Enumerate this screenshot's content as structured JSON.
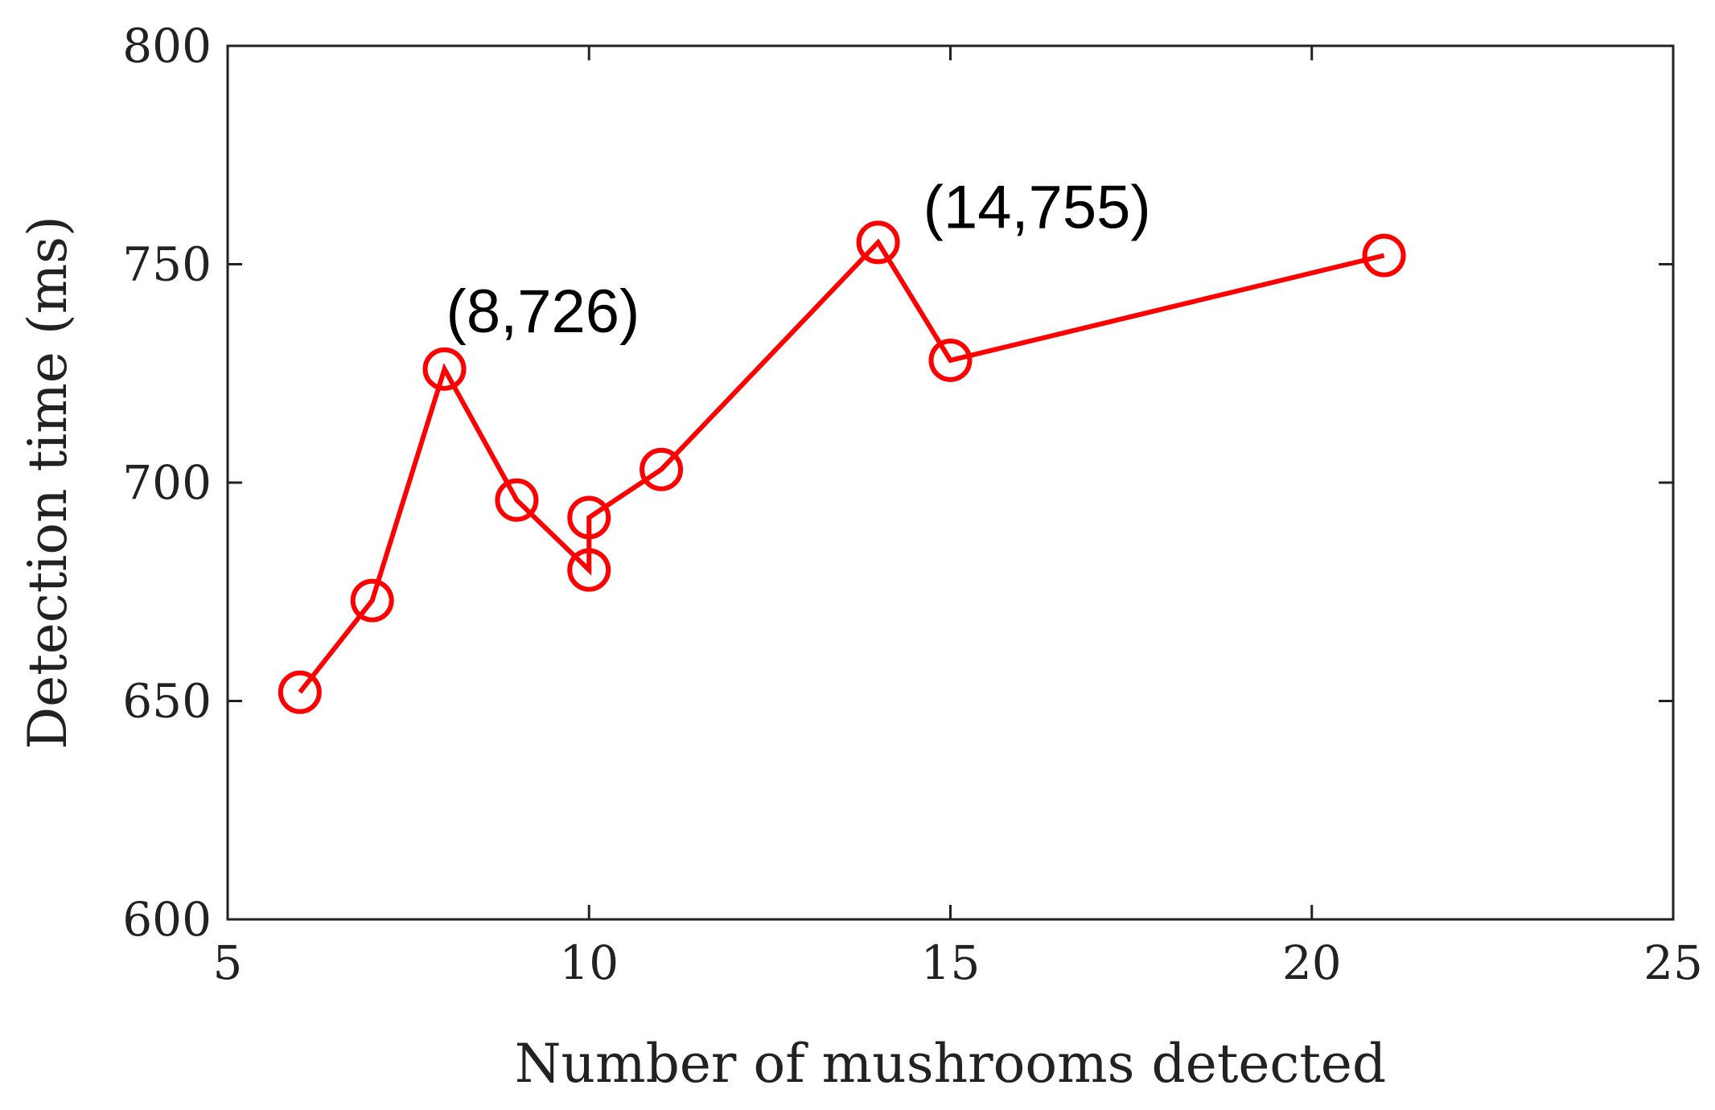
{
  "chart_data": {
    "type": "line",
    "title": "",
    "xlabel": "Number of mushrooms detected",
    "ylabel": "Detection time (ms)",
    "xlim": [
      5,
      25
    ],
    "ylim": [
      600,
      800
    ],
    "x_ticks": [
      5,
      10,
      15,
      20,
      25
    ],
    "y_ticks": [
      600,
      650,
      700,
      750,
      800
    ],
    "grid": false,
    "legend": "none",
    "series": [
      {
        "color": "#ff0000",
        "marker": "open-circle",
        "points": [
          {
            "x": 6,
            "y": 652
          },
          {
            "x": 7,
            "y": 673
          },
          {
            "x": 8,
            "y": 726
          },
          {
            "x": 9,
            "y": 696
          },
          {
            "x": 10,
            "y": 680
          },
          {
            "x": 10,
            "y": 692
          },
          {
            "x": 11,
            "y": 703
          },
          {
            "x": 14,
            "y": 755
          },
          {
            "x": 15,
            "y": 728
          },
          {
            "x": 21,
            "y": 752
          }
        ]
      }
    ],
    "annotations": [
      {
        "text": "(8,726)",
        "x": 8,
        "y": 726,
        "placement": "upper-right"
      },
      {
        "text": "(14,755)",
        "x": 14,
        "y": 755,
        "placement": "upper-right"
      }
    ]
  }
}
